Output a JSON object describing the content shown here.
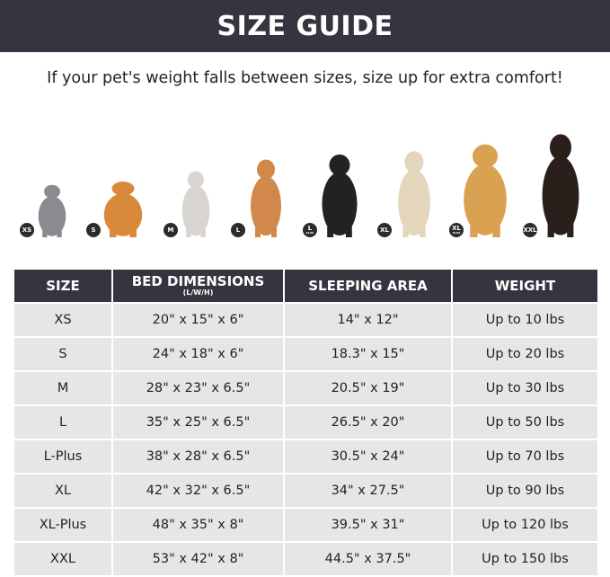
{
  "title": "SIZE GUIDE",
  "subtitle": "If your pet's weight falls between sizes, size up for extra comfort!",
  "pets": [
    {
      "badge": "XS",
      "plus": "",
      "animal": "cat",
      "color": "#8a8a90"
    },
    {
      "badge": "S",
      "plus": "",
      "animal": "pomeranian",
      "color": "#d88a3a"
    },
    {
      "badge": "M",
      "plus": "",
      "animal": "french-bulldog",
      "color": "#d8d4cf"
    },
    {
      "badge": "L",
      "plus": "",
      "animal": "shiba-inu",
      "color": "#d2884a"
    },
    {
      "badge": "L",
      "plus": "PLUS",
      "animal": "border-collie",
      "color": "#222222"
    },
    {
      "badge": "XL",
      "plus": "",
      "animal": "labrador",
      "color": "#e4d6bd"
    },
    {
      "badge": "XL",
      "plus": "PLUS",
      "animal": "golden-retriever",
      "color": "#d9a152"
    },
    {
      "badge": "XXL",
      "plus": "",
      "animal": "doberman",
      "color": "#2a1f1a"
    }
  ],
  "table": {
    "headers": [
      "SIZE",
      "BED DIMENSIONS",
      "SLEEPING AREA",
      "WEIGHT"
    ],
    "header_note": "(L/W/H)",
    "rows": [
      [
        "XS",
        "20\" x 15\" x 6\"",
        "14\" x 12\"",
        "Up to 10 lbs"
      ],
      [
        "S",
        "24\" x 18\" x 6\"",
        "18.3\" x 15\"",
        "Up to 20 lbs"
      ],
      [
        "M",
        "28\" x 23\" x 6.5\"",
        "20.5\" x 19\"",
        "Up to 30 lbs"
      ],
      [
        "L",
        "35\" x 25\" x 6.5\"",
        "26.5\" x 20\"",
        "Up to 50 lbs"
      ],
      [
        "L-Plus",
        "38\" x 28\" x 6.5\"",
        "30.5\" x 24\"",
        "Up to 70 lbs"
      ],
      [
        "XL",
        "42\" x 32\" x 6.5\"",
        "34\" x 27.5\"",
        "Up to 90 lbs"
      ],
      [
        "XL-Plus",
        "48\" x 35\" x 8\"",
        "39.5\" x 31\"",
        "Up to 120 lbs"
      ],
      [
        "XXL",
        "53\" x 42\" x 8\"",
        "44.5\" x 37.5\"",
        "Up to 150 lbs"
      ]
    ]
  },
  "colors": {
    "header": "#34353f",
    "row": "#e6e6e6"
  }
}
